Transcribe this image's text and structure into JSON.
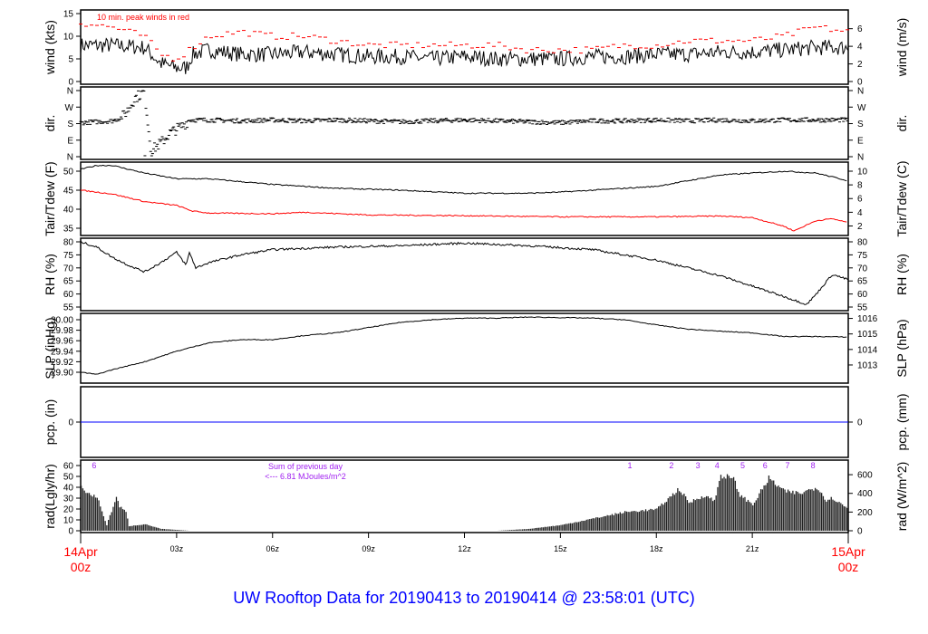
{
  "title": "UW Rooftop Data for 20190413  to  20190414 @ 23:58:01  (UTC)",
  "colors": {
    "black": "#000000",
    "peak": "#ff0000",
    "dew": "#ff0000",
    "pcp": "#0000ff",
    "rad_label": "#a020f0",
    "title": "#0000ff",
    "date": "#ff0000"
  },
  "chart_data": [
    {
      "type": "line",
      "id": "wind",
      "ylabel": "wind (kts)",
      "ylabel_right": "wind (m/s)",
      "ylim": [
        0,
        15
      ],
      "yticks": [
        0,
        5,
        10,
        15
      ],
      "yticks_right": [
        0,
        2,
        4,
        6
      ],
      "annotation": "10 min. peak winds in red",
      "x": [
        0,
        1,
        2,
        2.5,
        3,
        3.3,
        3.5,
        4,
        5,
        6,
        7,
        8,
        9,
        10,
        11,
        12,
        13,
        14,
        15,
        16,
        17,
        18,
        19,
        20,
        21,
        22,
        23,
        24
      ],
      "values": [
        8,
        8,
        7.5,
        4,
        3,
        3,
        6,
        7,
        6,
        6,
        6.5,
        6,
        5.5,
        5.5,
        5,
        5.5,
        5,
        5,
        5,
        5.5,
        5.5,
        6,
        6,
        6.5,
        6.5,
        7,
        7.5,
        7.5
      ],
      "peak_x": [
        0,
        1,
        2,
        2.5,
        3,
        4,
        5,
        6,
        7,
        8,
        9,
        10,
        11,
        12,
        13,
        14,
        15,
        16,
        17,
        18,
        19,
        20,
        21,
        22,
        23,
        24
      ],
      "peak": [
        13,
        12,
        10,
        6,
        5,
        10,
        11,
        10,
        10,
        9,
        8,
        8,
        8,
        8,
        8,
        7,
        7,
        7,
        8,
        8,
        9,
        9,
        9,
        10,
        12,
        11
      ]
    },
    {
      "type": "scatter",
      "id": "dir",
      "ylabel": "dir.",
      "ylabel_right": "dir.",
      "ylim": [
        0,
        360
      ],
      "yticks": [
        "N",
        "E",
        "S",
        "W",
        "N"
      ],
      "x": [
        0,
        0.5,
        1,
        1.3,
        1.5,
        1.7,
        2,
        2.2,
        2.4,
        2.6,
        2.8,
        3,
        3.2,
        3.4,
        4,
        5,
        6,
        7,
        8,
        9,
        10,
        11,
        12,
        13,
        14,
        15,
        16,
        17,
        18,
        19,
        20,
        21,
        22,
        23,
        24
      ],
      "values": [
        185,
        190,
        195,
        215,
        260,
        320,
        355,
        30,
        60,
        90,
        130,
        150,
        170,
        200,
        200,
        195,
        200,
        195,
        200,
        195,
        190,
        195,
        200,
        195,
        190,
        185,
        195,
        195,
        200,
        195,
        200,
        195,
        200,
        200,
        200
      ]
    },
    {
      "type": "line",
      "id": "temp",
      "ylabel": "Tair/Tdew (F)",
      "ylabel_right": "Tair/Tdew (C)",
      "ylim": [
        33,
        53
      ],
      "yticks": [
        35,
        40,
        45,
        50
      ],
      "yticks_right": [
        2,
        4,
        6,
        8,
        10
      ],
      "series": [
        {
          "x": [
            0,
            0.5,
            1,
            2,
            3,
            4,
            6,
            8,
            10,
            12,
            14,
            15,
            16,
            18,
            19,
            20,
            22,
            23,
            24
          ],
          "values": [
            50.5,
            51.5,
            51.5,
            49.5,
            48,
            48,
            46.5,
            45.5,
            45,
            44.2,
            44.2,
            44.5,
            45,
            46,
            47.5,
            49,
            50,
            49.5,
            47.5
          ]
        },
        {
          "x": [
            0,
            1,
            2,
            3,
            3.5,
            4,
            6,
            7,
            9,
            12,
            15,
            18,
            20,
            21,
            22,
            22.3,
            23,
            23.5,
            24
          ],
          "values": [
            45,
            44,
            42,
            41,
            39.5,
            39,
            38.8,
            39.2,
            38.5,
            38.3,
            38,
            38,
            38.2,
            37.8,
            35.5,
            34.3,
            37,
            37.5,
            36.5
          ]
        }
      ]
    },
    {
      "type": "line",
      "id": "rh",
      "ylabel": "RH (%)",
      "ylabel_right": "RH (%)",
      "ylim": [
        55,
        80
      ],
      "yticks": [
        55,
        60,
        65,
        70,
        75,
        80
      ],
      "x": [
        0,
        0.5,
        1,
        1.5,
        2,
        2.5,
        3,
        3.3,
        3.4,
        3.6,
        4,
        5,
        6,
        8,
        10,
        12,
        14,
        16,
        17,
        18,
        19,
        20,
        21,
        21.5,
        22,
        22.7,
        23,
        23.5,
        24
      ],
      "values": [
        80,
        78,
        74,
        71,
        68.5,
        72,
        76,
        71,
        76,
        70,
        72,
        75,
        77,
        78,
        78.5,
        79.5,
        78.5,
        77,
        75,
        73,
        70,
        67,
        63,
        61,
        59,
        56,
        60,
        67.5,
        65.5
      ]
    },
    {
      "type": "line",
      "id": "slp",
      "ylabel": "SLP (inHg)",
      "ylabel_right": "SLP (hPa)",
      "ylim": [
        29.888,
        30.012
      ],
      "yticks": [
        "29.90",
        "29.92",
        "29.94",
        "29.96",
        "29.98",
        "30.00"
      ],
      "yticks_right": [
        1013,
        1014,
        1015,
        1016
      ],
      "x": [
        0,
        0.5,
        1,
        2,
        3,
        4,
        5,
        6,
        7,
        8,
        9,
        10,
        11,
        12,
        13,
        14,
        15,
        16,
        17,
        18,
        19,
        20,
        21,
        22,
        23,
        24
      ],
      "values": [
        29.9,
        29.896,
        29.905,
        29.92,
        29.94,
        29.956,
        29.962,
        29.962,
        29.97,
        29.975,
        29.985,
        29.995,
        30.0,
        30.003,
        30.003,
        30.005,
        30.004,
        30.003,
        30.0,
        29.99,
        29.982,
        29.978,
        29.975,
        29.968,
        29.968,
        29.967
      ]
    },
    {
      "type": "line",
      "id": "pcp",
      "ylabel": "pcp. (in)",
      "ylabel_right": "pcp. (mm)",
      "yticks": [
        0
      ],
      "yticks_right": [
        0
      ],
      "x": [
        0,
        24
      ],
      "values": [
        0,
        0
      ]
    },
    {
      "type": "area",
      "id": "rad",
      "ylabel": "rad(Lgly/hr)",
      "ylabel_right": "rad (W/m^2)",
      "ylim_right": [
        0,
        700
      ],
      "yticks": [
        0,
        10,
        20,
        30,
        40,
        50,
        60
      ],
      "yticks_right": [
        0,
        200,
        400,
        600
      ],
      "annotation": [
        "Sum of previous day",
        "<--- 6.81 MJoules/m^2"
      ],
      "hour_markers": [
        {
          "label": "6",
          "x": 0.42
        },
        {
          "label": "1",
          "x": 17.17
        },
        {
          "label": "2",
          "x": 18.47
        },
        {
          "label": "3",
          "x": 19.3
        },
        {
          "label": "4",
          "x": 19.9
        },
        {
          "label": "5",
          "x": 20.7
        },
        {
          "label": "6",
          "x": 21.4
        },
        {
          "label": "7",
          "x": 22.1
        },
        {
          "label": "8",
          "x": 22.9
        }
      ],
      "x": [
        0,
        0.2,
        0.5,
        0.8,
        1.1,
        1.2,
        1.4,
        1.5,
        2,
        2.5,
        3.4,
        13,
        14,
        15,
        16,
        17,
        18,
        18.7,
        19,
        19.5,
        19.8,
        20,
        20.4,
        20.6,
        21,
        21.5,
        22,
        22.5,
        23,
        23.3,
        23.5,
        24
      ],
      "values": [
        470,
        400,
        360,
        60,
        360,
        260,
        200,
        50,
        70,
        20,
        0,
        0,
        20,
        60,
        130,
        200,
        230,
        450,
        300,
        380,
        320,
        600,
        550,
        380,
        280,
        560,
        420,
        400,
        470,
        330,
        350,
        230
      ]
    }
  ],
  "xaxis": {
    "ticks": [
      "03z",
      "06z",
      "09z",
      "12z",
      "15z",
      "18z",
      "21z"
    ],
    "start": [
      "14Apr",
      "00z"
    ],
    "end": [
      "15Apr",
      "00z"
    ]
  }
}
